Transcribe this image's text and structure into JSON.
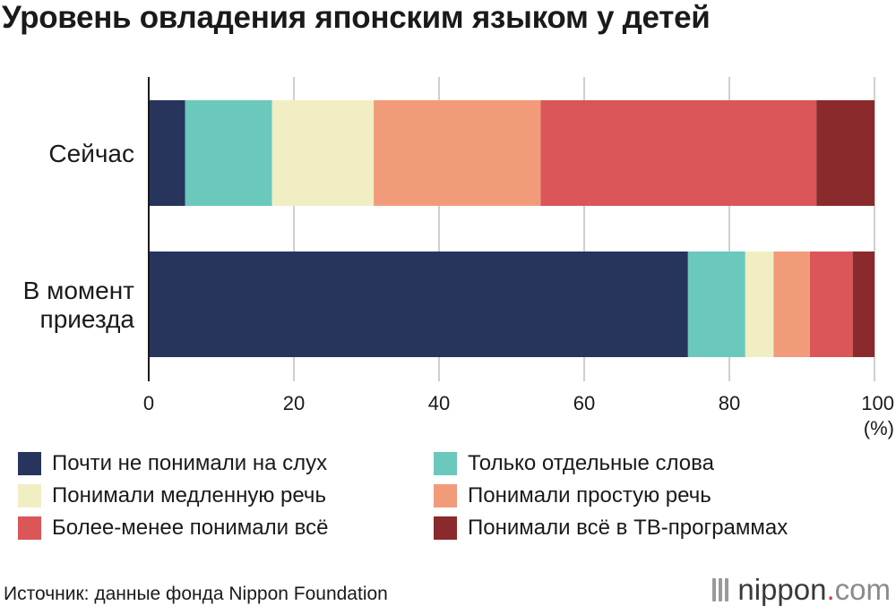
{
  "title": "Уровень овладения японским языком у детей",
  "chart_data": {
    "type": "bar",
    "orientation": "horizontal",
    "stacked": true,
    "categories": [
      "Сейчас",
      "В момент приезда"
    ],
    "series": [
      {
        "name": "Почти не понимали на слух",
        "color": "#27345c",
        "values": [
          5,
          74.3
        ]
      },
      {
        "name": "Только отдельные слова",
        "color": "#6bc8bc",
        "values": [
          12,
          7.9
        ]
      },
      {
        "name": "Понимали медленную речь",
        "color": "#f2eec4",
        "values": [
          14,
          3.9
        ]
      },
      {
        "name": "Понимали простую речь",
        "color": "#f29b7b",
        "values": [
          23,
          5
        ]
      },
      {
        "name": "Более-менее понимали всё",
        "color": "#da5658",
        "values": [
          38,
          5.9
        ]
      },
      {
        "name": "Понимали всё в ТВ-программах",
        "color": "#8a2a2c",
        "values": [
          8,
          3
        ]
      }
    ],
    "xlim": [
      0,
      100
    ],
    "x_ticks": [
      "0",
      "20",
      "40",
      "60",
      "80",
      "100"
    ],
    "x_unit": "(%)",
    "grid": true,
    "legend_position": "bottom"
  },
  "source": "Источник: данные фонда Nippon Foundation",
  "brand": {
    "name": "nippon",
    "dot": ".",
    "tld": "com"
  }
}
